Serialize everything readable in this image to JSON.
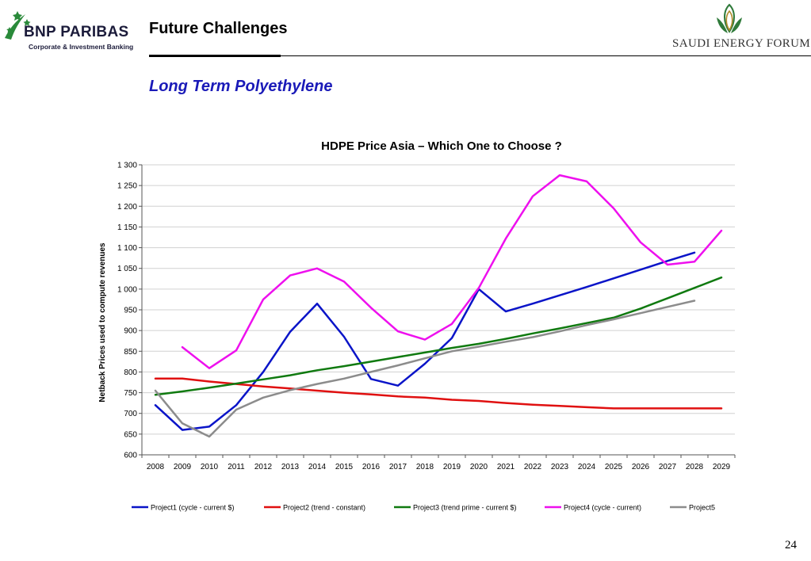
{
  "header": {
    "logo_left": {
      "brand": "BNP PARIBAS",
      "tagline": "Corporate & Investment Banking",
      "icon": "stars-bird-logo",
      "color": "#2a8a3a"
    },
    "title": "Future Challenges",
    "logo_right": {
      "name": "SAUDI ENERGY FORUM",
      "icon": "leaf-emblem-logo",
      "color": "#2f7a3a"
    }
  },
  "subtitle": "Long Term Polyethylene",
  "page_number": "24",
  "chart_data": {
    "type": "line",
    "title": "HDPE Price Asia – Which One to Choose ?",
    "xlabel": "",
    "ylabel": "Netback Prices used to compute revenues",
    "x": [
      "2008",
      "2009",
      "2010",
      "2011",
      "2012",
      "2013",
      "2014",
      "2015",
      "2016",
      "2017",
      "2018",
      "2019",
      "2020",
      "2021",
      "2022",
      "2023",
      "2024",
      "2025",
      "2026",
      "2027",
      "2028",
      "2029"
    ],
    "ylim": [
      600,
      1300
    ],
    "ytick_values": [
      600,
      650,
      700,
      750,
      800,
      850,
      900,
      950,
      1000,
      1050,
      1100,
      1150,
      1200,
      1250,
      1300
    ],
    "ytick_labels": [
      "600",
      "650",
      "700",
      "750",
      "800",
      "850",
      "900",
      "950",
      "1 000",
      "1 050",
      "1 100",
      "1 150",
      "1 200",
      "1 250",
      "1 300"
    ],
    "grid": true,
    "legend_position": "bottom",
    "series": [
      {
        "name": "Project1 (cycle - current $)",
        "color": "#0a14c8",
        "values": [
          720,
          660,
          668,
          720,
          800,
          897,
          965,
          885,
          783,
          767,
          820,
          882,
          1000,
          946,
          965,
          985,
          1005,
          1026,
          1047,
          1068,
          1088,
          null
        ]
      },
      {
        "name": "Project2 (trend - constant)",
        "color": "#e01010",
        "values": [
          784,
          784,
          777,
          771,
          765,
          760,
          755,
          750,
          746,
          741,
          738,
          733,
          730,
          725,
          721,
          718,
          715,
          712,
          712,
          712,
          712,
          712
        ]
      },
      {
        "name": "Project3 (trend prime - current $)",
        "color": "#107a10",
        "values": [
          745,
          753,
          762,
          772,
          782,
          792,
          804,
          814,
          825,
          836,
          847,
          858,
          868,
          880,
          893,
          905,
          918,
          931,
          953,
          978,
          1003,
          1028
        ]
      },
      {
        "name": "Project4 (cycle - current)",
        "color": "#ee10ee",
        "values": [
          null,
          860,
          809,
          852,
          975,
          1033,
          1050,
          1018,
          955,
          898,
          878,
          916,
          1003,
          1122,
          1224,
          1275,
          1260,
          1195,
          1113,
          1059,
          1066,
          1141
        ]
      },
      {
        "name": "Project5",
        "color": "#8c8c8c",
        "values": [
          755,
          676,
          644,
          709,
          738,
          756,
          771,
          784,
          800,
          816,
          833,
          850,
          861,
          873,
          884,
          898,
          913,
          927,
          942,
          957,
          972,
          null
        ]
      }
    ]
  }
}
